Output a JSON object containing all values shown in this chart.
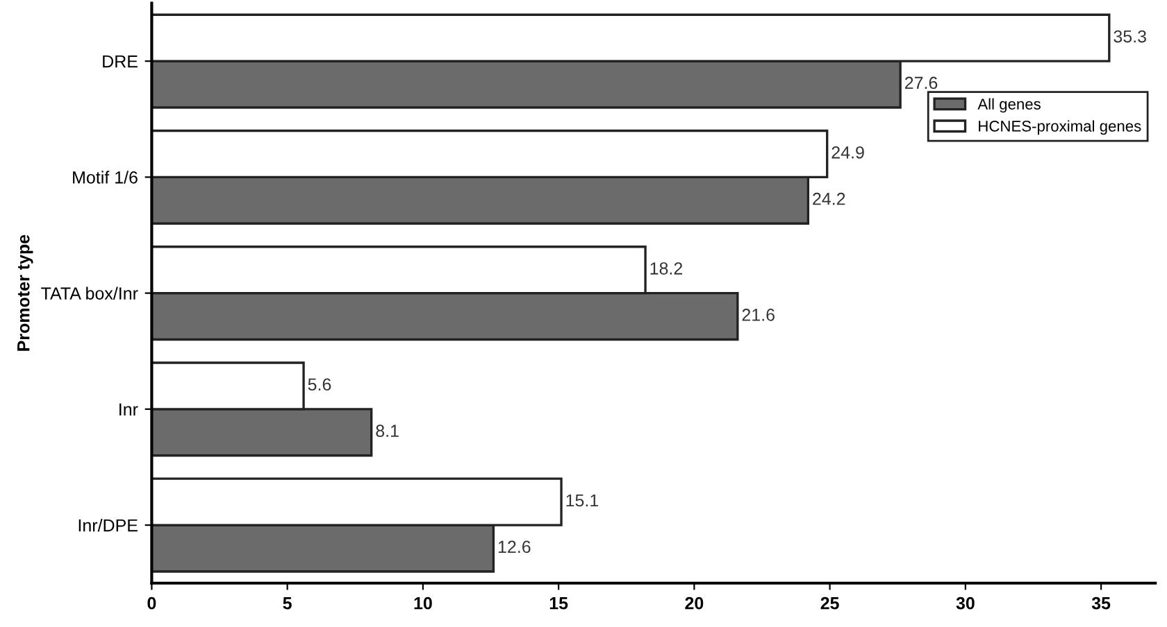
{
  "chart_data": {
    "type": "bar",
    "orientation": "horizontal",
    "ylabel": "Promoter type",
    "categories": [
      "DRE",
      "Motif 1/6",
      "TATA box/Inr",
      "Inr",
      "Inr/DPE"
    ],
    "series": [
      {
        "name": "All genes",
        "color": "#6b6b6b",
        "values": [
          27.6,
          24.2,
          21.6,
          8.1,
          12.6
        ]
      },
      {
        "name": "HCNES-proximal genes",
        "color": "#ffffff",
        "values": [
          35.3,
          24.9,
          18.2,
          5.6,
          15.1
        ]
      }
    ],
    "xlim": [
      0,
      37
    ],
    "xticks": [
      0,
      5,
      10,
      15,
      20,
      25,
      30,
      35
    ],
    "data_labels": true,
    "legend": "top right",
    "grid": false
  }
}
